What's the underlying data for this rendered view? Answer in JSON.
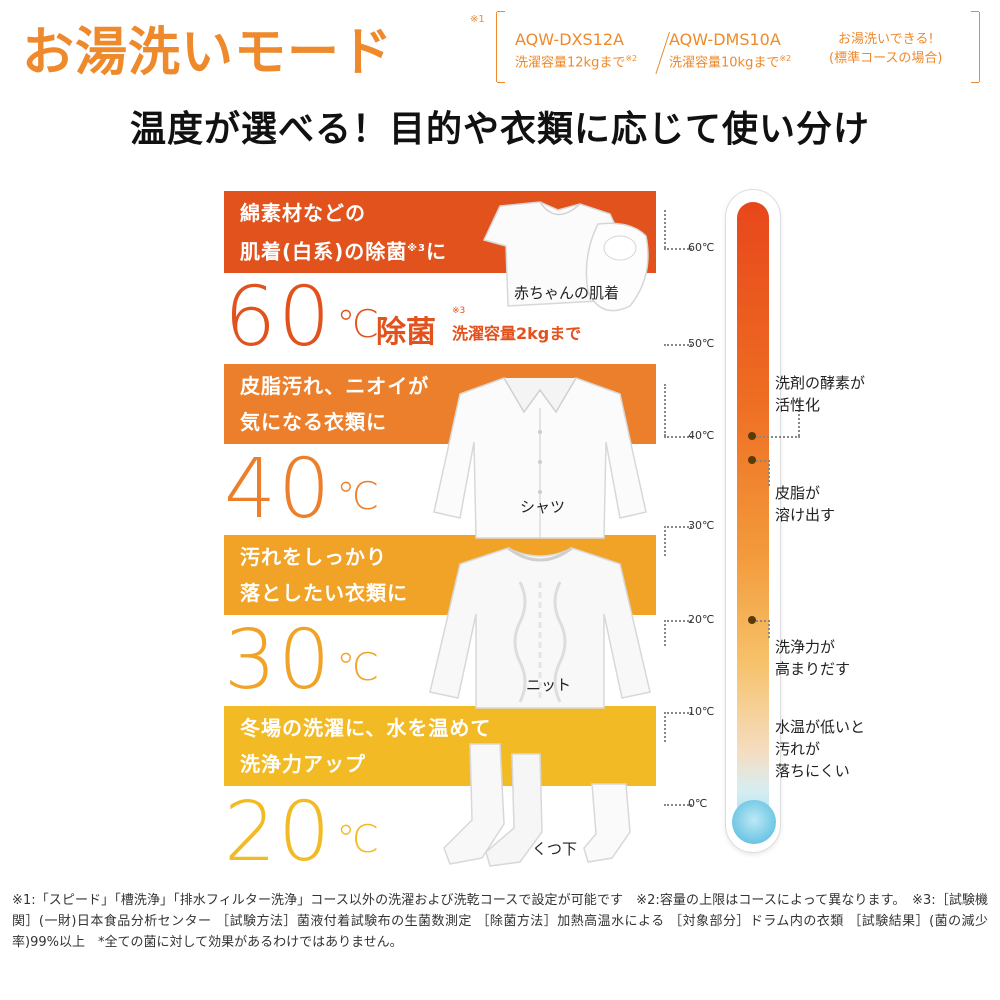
{
  "header": {
    "title": "お湯洗いモード",
    "title_note": "※1",
    "models": [
      {
        "name": "AQW-DXS12A",
        "capacity": "洗濯容量12kgまで",
        "note": "※2"
      },
      {
        "name": "AQW-DMS10A",
        "capacity": "洗濯容量10kgまで",
        "note": "※2"
      }
    ],
    "model_note_line1": "お湯洗いできる!",
    "model_note_line2": "(標準コースの場合)"
  },
  "subtitle": "温度が選べる！目的や衣類に応じて使い分け",
  "modes": [
    {
      "line1": "綿素材などの",
      "line2a": "肌着(白系)の除菌",
      "line2_note": "※3",
      "line2b": "に",
      "temp": "60",
      "unit": "℃",
      "color": "#e2521c"
    },
    {
      "line1": "皮脂汚れ、ニオイが",
      "line2a": "気になる衣類に",
      "temp": "40",
      "unit": "℃",
      "color": "#ec7f2c"
    },
    {
      "line1": "汚れをしっかり",
      "line2a": "落としたい衣類に",
      "temp": "30",
      "unit": "℃",
      "color": "#f1a327"
    },
    {
      "line1": "冬場の洗濯に、水を温めて",
      "line2a": "洗浄力アップ",
      "temp": "20",
      "unit": "℃",
      "color": "#f2bb25"
    }
  ],
  "sterilize": {
    "label": "除菌",
    "note": "※3",
    "capacity": "洗濯容量2kgまで"
  },
  "clothes": {
    "baby": "赤ちゃんの肌着",
    "shirt": "シャツ",
    "knit": "ニット",
    "socks": "くつ下"
  },
  "thermometer": {
    "ticks": [
      "60℃",
      "50℃",
      "40℃",
      "30℃",
      "20℃",
      "10℃",
      "0℃"
    ],
    "labels": [
      {
        "line1": "洗剤の酵素が",
        "line2": "活性化"
      },
      {
        "line1": "皮脂が",
        "line2": "溶け出す"
      },
      {
        "line1": "洗浄力が",
        "line2": "高まりだす"
      },
      {
        "line1": "水温が低いと",
        "line2": "汚れが",
        "line3": "落ちにくい"
      }
    ]
  },
  "footnote": "※1:「スピード」「槽洗浄」「排水フィルター洗浄」コース以外の洗濯および洗乾コースで設定が可能です　※2:容量の上限はコースによって異なります。　※3:［試験機関］(一財)日本食品分析センター ［試験方法］菌液付着試験布の生菌数測定 ［除菌方法］加熱高温水による ［対象部分］ドラム内の衣類 ［試験結果］(菌の減少率)99%以上　*全ての菌に対して効果があるわけではありません。"
}
